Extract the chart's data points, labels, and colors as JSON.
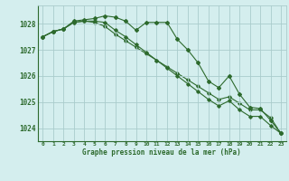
{
  "x": [
    0,
    1,
    2,
    3,
    4,
    5,
    6,
    7,
    8,
    9,
    10,
    11,
    12,
    13,
    14,
    15,
    16,
    17,
    18,
    19,
    20,
    21,
    22,
    23
  ],
  "series1": [
    1027.5,
    1027.7,
    1027.8,
    1028.1,
    1028.15,
    1028.2,
    1028.3,
    1028.25,
    1028.1,
    1027.75,
    1028.05,
    1028.05,
    1028.05,
    1027.4,
    1027.0,
    1026.5,
    1025.8,
    1025.55,
    1026.0,
    1025.3,
    1024.8,
    1024.75,
    1024.3,
    1023.8
  ],
  "series2": [
    1027.5,
    1027.7,
    1027.8,
    1028.05,
    1028.1,
    1028.1,
    1028.05,
    1027.75,
    1027.5,
    1027.2,
    1026.9,
    1026.6,
    1026.3,
    1026.0,
    1025.7,
    1025.4,
    1025.1,
    1024.85,
    1025.05,
    1024.7,
    1024.45,
    1024.45,
    1024.1,
    1023.8
  ],
  "series3": [
    1027.5,
    1027.7,
    1027.8,
    1028.05,
    1028.1,
    1028.05,
    1027.9,
    1027.6,
    1027.35,
    1027.1,
    1026.85,
    1026.6,
    1026.35,
    1026.1,
    1025.85,
    1025.6,
    1025.35,
    1025.1,
    1025.2,
    1024.95,
    1024.7,
    1024.7,
    1024.4,
    1023.8
  ],
  "ylim": [
    1023.5,
    1028.7
  ],
  "yticks": [
    1024,
    1025,
    1026,
    1027,
    1028
  ],
  "bg_color": "#d4eeee",
  "line_color": "#2d6a2d",
  "grid_color": "#aacccc",
  "label": "Graphe pression niveau de la mer (hPa)",
  "figsize": [
    3.2,
    2.0
  ],
  "dpi": 100
}
